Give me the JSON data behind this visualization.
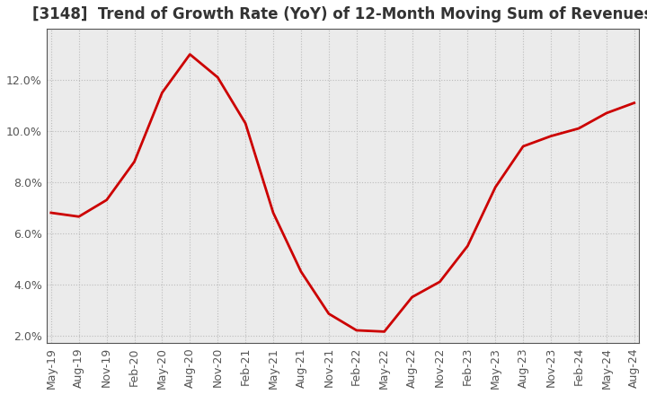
{
  "title": "[3148]  Trend of Growth Rate (YoY) of 12-Month Moving Sum of Revenues",
  "line_color": "#CC0000",
  "background_color": "#FFFFFF",
  "plot_bg_color": "#EBEBEB",
  "grid_color": "#BBBBBB",
  "spine_color": "#555555",
  "x_labels": [
    "May-19",
    "Aug-19",
    "Nov-19",
    "Feb-20",
    "May-20",
    "Aug-20",
    "Nov-20",
    "Feb-21",
    "May-21",
    "Aug-21",
    "Nov-21",
    "Feb-22",
    "May-22",
    "Aug-22",
    "Nov-22",
    "Feb-23",
    "May-23",
    "Aug-23",
    "Nov-23",
    "Feb-24",
    "May-24",
    "Aug-24"
  ],
  "x_values": [
    0,
    3,
    6,
    9,
    12,
    15,
    18,
    21,
    24,
    27,
    30,
    33,
    36,
    39,
    42,
    45,
    48,
    51,
    54,
    57,
    60,
    63
  ],
  "y_values": [
    6.8,
    6.65,
    7.3,
    8.8,
    11.5,
    13.0,
    12.1,
    10.3,
    6.8,
    4.5,
    2.85,
    2.2,
    2.15,
    3.5,
    4.1,
    5.5,
    7.8,
    9.4,
    9.8,
    10.1,
    10.7,
    11.1
  ],
  "ylim": [
    1.7,
    14.0
  ],
  "yticks": [
    2.0,
    4.0,
    6.0,
    8.0,
    10.0,
    12.0
  ],
  "title_fontsize": 12,
  "tick_fontsize": 9,
  "tick_color": "#555555",
  "line_width": 2.0
}
